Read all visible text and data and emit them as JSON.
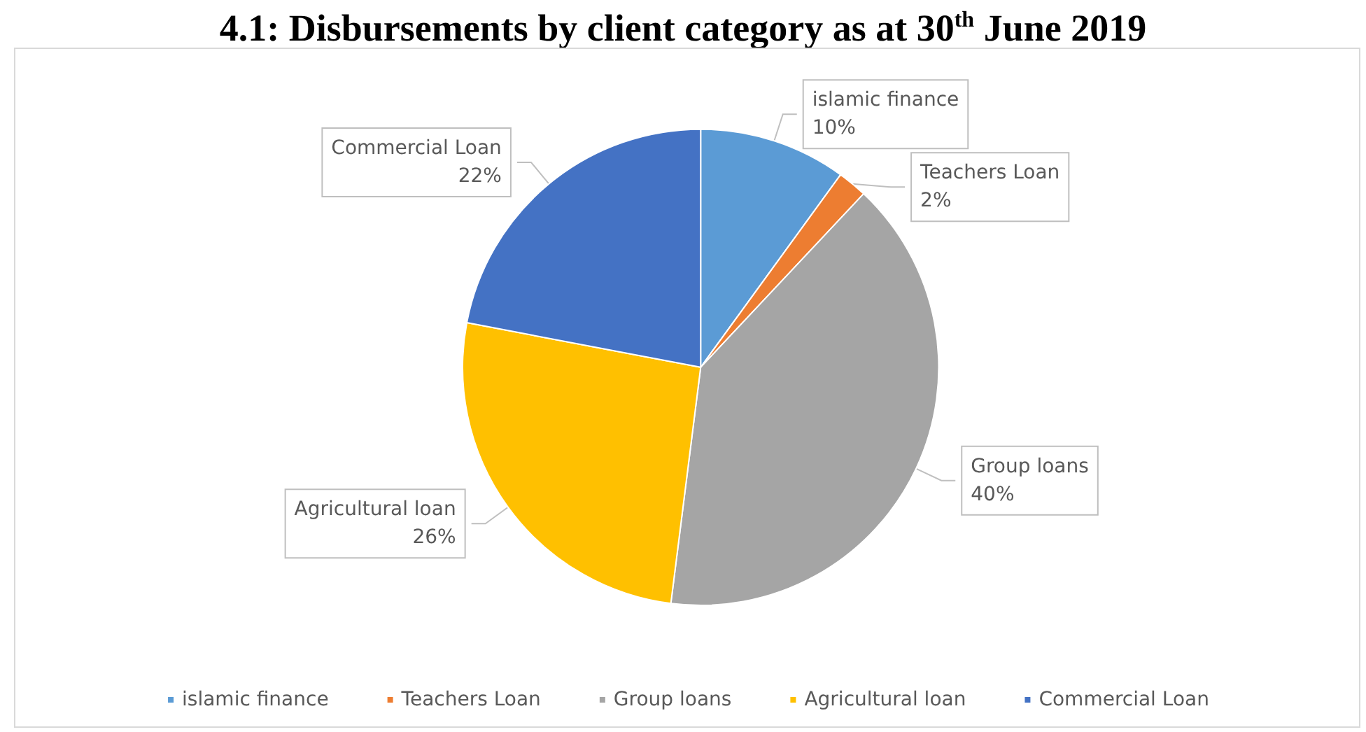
{
  "chart_data": {
    "type": "pie",
    "title": "4.1: Disbursements by client category as at 30$^{th}$ June 2019",
    "categories": [
      "islamic finance",
      "Teachers Loan",
      "Group loans",
      "Agricultural loan",
      "Commercial Loan"
    ],
    "values": [
      10,
      2,
      40,
      26,
      22
    ],
    "colors": [
      "#5b9bd5",
      "#ed7d31",
      "#a5a5a5",
      "#ffc000",
      "#4472c4"
    ],
    "value_labels": [
      "10%",
      "2%",
      "40%",
      "26%",
      "22%"
    ],
    "legend": "bottom"
  }
}
